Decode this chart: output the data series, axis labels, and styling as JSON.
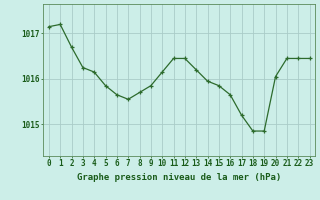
{
  "x": [
    0,
    1,
    2,
    3,
    4,
    5,
    6,
    7,
    8,
    9,
    10,
    11,
    12,
    13,
    14,
    15,
    16,
    17,
    18,
    19,
    20,
    21,
    22,
    23
  ],
  "y": [
    1017.15,
    1017.2,
    1016.7,
    1016.25,
    1016.15,
    1015.85,
    1015.65,
    1015.55,
    1015.7,
    1015.85,
    1016.15,
    1016.45,
    1016.45,
    1016.2,
    1015.95,
    1015.85,
    1015.65,
    1015.2,
    1014.85,
    1014.85,
    1016.05,
    1016.45,
    1016.45,
    1016.45
  ],
  "line_color": "#2d6b2d",
  "marker": "+",
  "bg_color": "#cceee8",
  "grid_color": "#aaccc8",
  "ylabel_ticks": [
    1015,
    1016,
    1017
  ],
  "xlabel_label": "Graphe pression niveau de la mer (hPa)",
  "xlabel_color": "#1a5c1a",
  "ylim": [
    1014.3,
    1017.65
  ],
  "xlim": [
    -0.5,
    23.5
  ],
  "tick_color": "#1a5c1a",
  "spine_color": "#5a8a5a",
  "label_fontsize": 5.5,
  "xlabel_fontsize": 6.5,
  "marker_size": 3.5,
  "linewidth": 0.9
}
